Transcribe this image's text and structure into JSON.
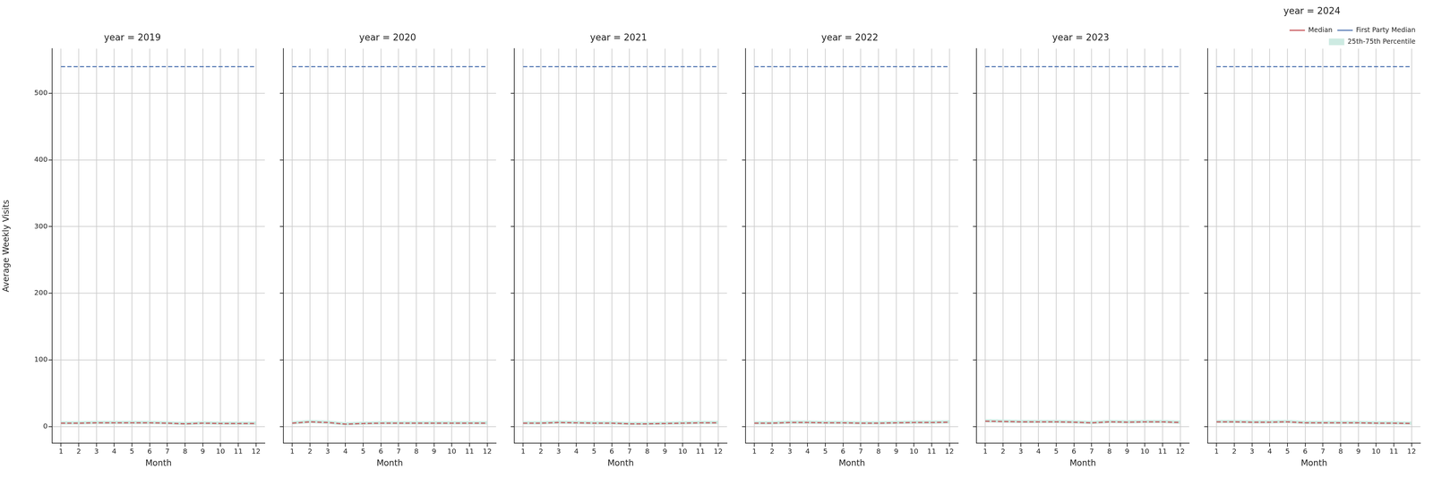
{
  "chart_data": [
    {
      "type": "line",
      "title": "year = 2019",
      "x_label": "Month",
      "y_label": "Average Weekly Visits",
      "x": [
        1,
        2,
        3,
        4,
        5,
        6,
        7,
        8,
        9,
        10,
        11,
        12
      ],
      "xlim": [
        0.5,
        12.5
      ],
      "xticks": [
        1,
        2,
        3,
        4,
        5,
        6,
        7,
        8,
        9,
        10,
        11,
        12
      ],
      "ylim": [
        -25,
        567
      ],
      "yticks": [
        0,
        100,
        200,
        300,
        400,
        500
      ],
      "grid": true,
      "series": [
        {
          "name": "Median",
          "color": "#c44e52",
          "line_style": "dashed",
          "values": [
            5,
            5,
            5.5,
            5.5,
            5.5,
            5.5,
            5,
            4,
            5,
            4.5,
            4.5,
            4.5
          ]
        },
        {
          "name": "First Party Median",
          "color": "#4c72b0",
          "line_style": "dashed",
          "values": [
            540,
            540,
            540,
            540,
            540,
            540,
            540,
            540,
            540,
            540,
            540,
            540
          ]
        },
        {
          "name": "25th-75th Percentile",
          "type": "band",
          "color": "#cdeae2",
          "lower": [
            3,
            3,
            3.5,
            3.5,
            3.5,
            3.5,
            3,
            2,
            3,
            2.5,
            2.5,
            2.5
          ],
          "upper": [
            8,
            8,
            8.5,
            8.5,
            8.5,
            8.5,
            8,
            7,
            8,
            7.5,
            7.5,
            7.5
          ]
        }
      ]
    },
    {
      "type": "line",
      "title": "year = 2020",
      "x_label": "Month",
      "x": [
        1,
        2,
        3,
        4,
        5,
        6,
        7,
        8,
        9,
        10,
        11,
        12
      ],
      "xlim": [
        0.5,
        12.5
      ],
      "xticks": [
        1,
        2,
        3,
        4,
        5,
        6,
        7,
        8,
        9,
        10,
        11,
        12
      ],
      "ylim": [
        -25,
        567
      ],
      "yticks": [
        0,
        100,
        200,
        300,
        400,
        500
      ],
      "grid": true,
      "tick_labels": "x",
      "series": [
        {
          "name": "Median",
          "color": "#c44e52",
          "line_style": "dashed",
          "values": [
            5,
            7,
            6,
            3.5,
            4.5,
            5,
            5,
            5,
            5,
            5,
            5,
            5
          ]
        },
        {
          "name": "First Party Median",
          "color": "#4c72b0",
          "line_style": "dashed",
          "values": [
            540,
            540,
            540,
            540,
            540,
            540,
            540,
            540,
            540,
            540,
            540,
            540
          ]
        },
        {
          "name": "25th-75th Percentile",
          "type": "band",
          "color": "#cdeae2",
          "lower": [
            3,
            5,
            4,
            1.5,
            2.5,
            3,
            3,
            3,
            3,
            3,
            3,
            3
          ],
          "upper": [
            8,
            10,
            9,
            6.5,
            7.5,
            8,
            8,
            8,
            8,
            8,
            8,
            8
          ]
        }
      ]
    },
    {
      "type": "line",
      "title": "year = 2021",
      "x_label": "Month",
      "x": [
        1,
        2,
        3,
        4,
        5,
        6,
        7,
        8,
        9,
        10,
        11,
        12
      ],
      "xlim": [
        0.5,
        12.5
      ],
      "xticks": [
        1,
        2,
        3,
        4,
        5,
        6,
        7,
        8,
        9,
        10,
        11,
        12
      ],
      "ylim": [
        -25,
        567
      ],
      "yticks": [
        0,
        100,
        200,
        300,
        400,
        500
      ],
      "grid": true,
      "tick_labels": "x",
      "series": [
        {
          "name": "Median",
          "color": "#c44e52",
          "line_style": "dashed",
          "values": [
            5,
            5,
            6,
            5.5,
            5,
            5,
            4,
            4,
            4.5,
            5,
            5.5,
            5.5
          ]
        },
        {
          "name": "First Party Median",
          "color": "#4c72b0",
          "line_style": "dashed",
          "values": [
            540,
            540,
            540,
            540,
            540,
            540,
            540,
            540,
            540,
            540,
            540,
            540
          ]
        },
        {
          "name": "25th-75th Percentile",
          "type": "band",
          "color": "#cdeae2",
          "lower": [
            3,
            3,
            4,
            3.5,
            3,
            3,
            2,
            2,
            2.5,
            3,
            3.5,
            3.5
          ],
          "upper": [
            8,
            8,
            9,
            8.5,
            8,
            8,
            7,
            7,
            7.5,
            8,
            8.5,
            8.5
          ]
        }
      ]
    },
    {
      "type": "line",
      "title": "year = 2022",
      "x_label": "Month",
      "x": [
        1,
        2,
        3,
        4,
        5,
        6,
        7,
        8,
        9,
        10,
        11,
        12
      ],
      "xlim": [
        0.5,
        12.5
      ],
      "xticks": [
        1,
        2,
        3,
        4,
        5,
        6,
        7,
        8,
        9,
        10,
        11,
        12
      ],
      "ylim": [
        -25,
        567
      ],
      "yticks": [
        0,
        100,
        200,
        300,
        400,
        500
      ],
      "grid": true,
      "tick_labels": "x",
      "series": [
        {
          "name": "Median",
          "color": "#c44e52",
          "line_style": "dashed",
          "values": [
            5,
            5,
            6,
            6,
            5.5,
            5.5,
            5,
            5,
            5.5,
            6,
            6,
            6.5
          ]
        },
        {
          "name": "First Party Median",
          "color": "#4c72b0",
          "line_style": "dashed",
          "values": [
            540,
            540,
            540,
            540,
            540,
            540,
            540,
            540,
            540,
            540,
            540,
            540
          ]
        },
        {
          "name": "25th-75th Percentile",
          "type": "band",
          "color": "#cdeae2",
          "lower": [
            3,
            3,
            4,
            4,
            3.5,
            3.5,
            3,
            3,
            3.5,
            4,
            4,
            4.5
          ],
          "upper": [
            8,
            8,
            9,
            9,
            8.5,
            8.5,
            8,
            8,
            8.5,
            9,
            9,
            9.5
          ]
        }
      ]
    },
    {
      "type": "line",
      "title": "year = 2023",
      "x_label": "Month",
      "x": [
        1,
        2,
        3,
        4,
        5,
        6,
        7,
        8,
        9,
        10,
        11,
        12
      ],
      "xlim": [
        0.5,
        12.5
      ],
      "xticks": [
        1,
        2,
        3,
        4,
        5,
        6,
        7,
        8,
        9,
        10,
        11,
        12
      ],
      "ylim": [
        -25,
        567
      ],
      "yticks": [
        0,
        100,
        200,
        300,
        400,
        500
      ],
      "grid": true,
      "tick_labels": "x",
      "series": [
        {
          "name": "Median",
          "color": "#c44e52",
          "line_style": "dashed",
          "values": [
            8,
            7.5,
            7,
            7,
            7,
            6.5,
            5.5,
            7,
            6.5,
            7,
            7,
            6
          ]
        },
        {
          "name": "First Party Median",
          "color": "#4c72b0",
          "line_style": "dashed",
          "values": [
            540,
            540,
            540,
            540,
            540,
            540,
            540,
            540,
            540,
            540,
            540,
            540
          ]
        },
        {
          "name": "25th-75th Percentile",
          "type": "band",
          "color": "#cdeae2",
          "lower": [
            6,
            5.5,
            5,
            5,
            5,
            4.5,
            3.5,
            5,
            4.5,
            5,
            5,
            4
          ],
          "upper": [
            11,
            10.5,
            10,
            10,
            10,
            9.5,
            8.5,
            10,
            9.5,
            10,
            10,
            9
          ]
        }
      ]
    },
    {
      "type": "line",
      "title": "year = 2024",
      "x_label": "Month",
      "x": [
        1,
        2,
        3,
        4,
        5,
        6,
        7,
        8,
        9,
        10,
        11,
        12
      ],
      "xlim": [
        0.5,
        12.5
      ],
      "xticks": [
        1,
        2,
        3,
        4,
        5,
        6,
        7,
        8,
        9,
        10,
        11,
        12
      ],
      "ylim": [
        -25,
        567
      ],
      "yticks": [
        0,
        100,
        200,
        300,
        400,
        500
      ],
      "grid": true,
      "tick_labels": "x",
      "legend": "upper right",
      "series": [
        {
          "name": "Median",
          "color": "#c44e52",
          "line_style": "dashed",
          "values": [
            7,
            7,
            6.5,
            6.5,
            7,
            5.5,
            5.5,
            5.5,
            5.5,
            5,
            5,
            4.5
          ]
        },
        {
          "name": "First Party Median",
          "color": "#4c72b0",
          "line_style": "dashed",
          "values": [
            540,
            540,
            540,
            540,
            540,
            540,
            540,
            540,
            540,
            540,
            540,
            540
          ]
        },
        {
          "name": "25th-75th Percentile",
          "type": "band",
          "color": "#cdeae2",
          "lower": [
            5,
            5,
            4.5,
            4.5,
            5,
            3.5,
            3.5,
            3.5,
            3.5,
            3,
            3,
            2.5
          ],
          "upper": [
            10,
            10,
            9.5,
            9.5,
            10,
            8.5,
            8.5,
            8.5,
            8.5,
            8,
            8,
            7.5
          ]
        }
      ]
    }
  ]
}
